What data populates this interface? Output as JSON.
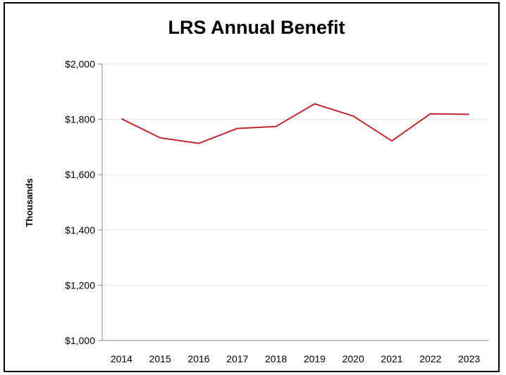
{
  "chart_data": {
    "type": "line",
    "title": "LRS Annual Benefit",
    "xlabel": "",
    "ylabel": "Thousands",
    "categories": [
      "2014",
      "2015",
      "2016",
      "2017",
      "2018",
      "2019",
      "2020",
      "2021",
      "2022",
      "2023"
    ],
    "series": [
      {
        "values": [
          1802,
          1733,
          1713,
          1767,
          1774,
          1856,
          1812,
          1722,
          1820,
          1818
        ]
      }
    ],
    "ylim": [
      1000,
      2000
    ],
    "yticks": [
      1000,
      1200,
      1400,
      1600,
      1800,
      2000
    ],
    "ytick_labels": [
      "$1,000",
      "$1,200",
      "$1,400",
      "$1,600",
      "$1,800",
      "$2,000"
    ],
    "grid": true,
    "legend": "none",
    "line_color": "#c1272d",
    "grid_color": "#e5e5e5",
    "axis_color": "#888888"
  }
}
